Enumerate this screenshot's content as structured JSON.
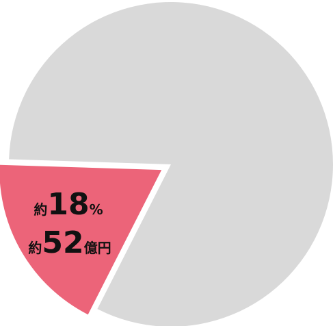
{
  "chart_data": {
    "type": "pie",
    "values": [
      18,
      82
    ],
    "value_labels": [
      "約18%",
      null
    ],
    "colors": [
      "#ec6479",
      "#d9d9d9"
    ],
    "exploded": [
      true,
      false
    ],
    "annotations": [
      "約52億円"
    ]
  }
}
